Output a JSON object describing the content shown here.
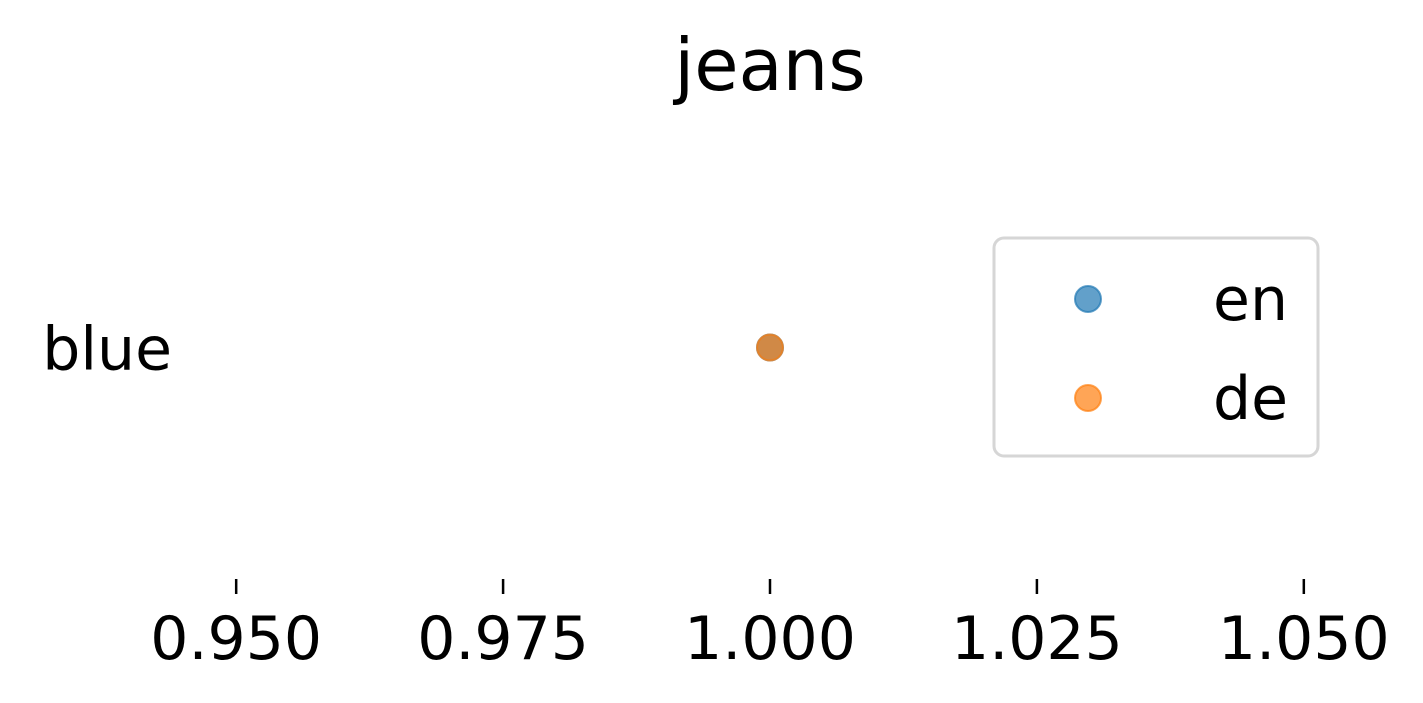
{
  "chart_data": {
    "type": "scatter",
    "title": "jeans",
    "xlabel": "",
    "ylabel": "",
    "categories": [
      "blue"
    ],
    "x_ticks": [
      "0.950",
      "0.975",
      "1.000",
      "1.025",
      "1.050"
    ],
    "x_tick_values": [
      0.95,
      0.975,
      1.0,
      1.025,
      1.05
    ],
    "xlim": [
      0.9453,
      1.0547
    ],
    "grid": false,
    "legend": {
      "placement": "right"
    },
    "series": [
      {
        "name": "en",
        "color": "#1f77b4",
        "points": [
          {
            "category": "blue",
            "x": 1.0
          }
        ]
      },
      {
        "name": "de",
        "color": "#ff7f0e",
        "points": [
          {
            "category": "blue",
            "x": 1.0
          }
        ]
      }
    ]
  }
}
